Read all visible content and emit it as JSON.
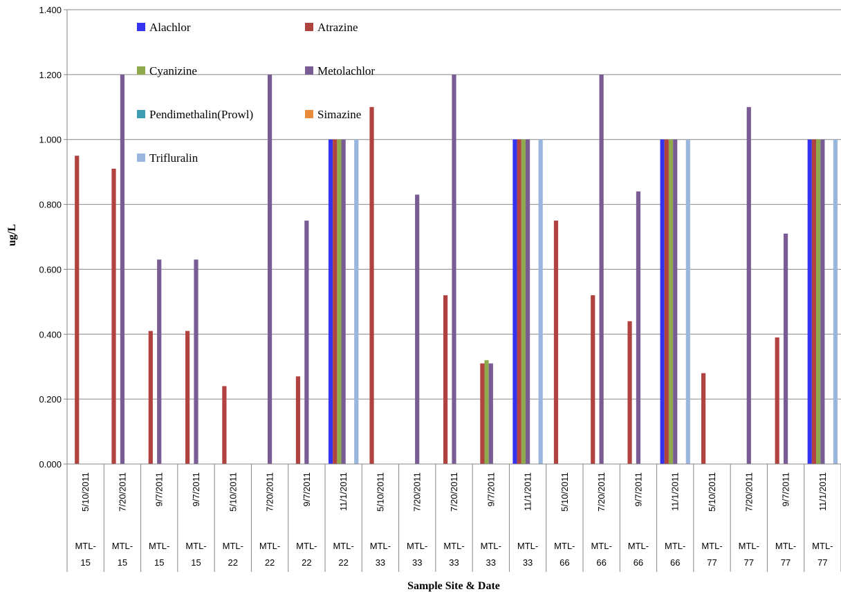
{
  "chart_data": {
    "type": "bar",
    "xlabel": "Sample Site & Date",
    "ylabel": "ug/L",
    "ylim": [
      0,
      1.4
    ],
    "yticks": [
      "0.000",
      "0.200",
      "0.400",
      "0.600",
      "0.800",
      "1.000",
      "1.200",
      "1.400"
    ],
    "grid": "horizontal",
    "legend_position": "top-left",
    "categories": [
      {
        "date": "5/10/2011",
        "site": [
          "MTL-",
          "15"
        ]
      },
      {
        "date": "7/20/2011",
        "site": [
          "MTL-",
          "15"
        ]
      },
      {
        "date": "9/7/2011",
        "site": [
          "MTL-",
          "15"
        ]
      },
      {
        "date": "9/7/2011",
        "site": [
          "MTL-",
          "15"
        ]
      },
      {
        "date": "5/10/2011",
        "site": [
          "MTL-",
          "22"
        ]
      },
      {
        "date": "7/20/2011",
        "site": [
          "MTL-",
          "22"
        ]
      },
      {
        "date": "9/7/2011",
        "site": [
          "MTL-",
          "22"
        ]
      },
      {
        "date": "11/1/2011",
        "site": [
          "MTL-",
          "22"
        ]
      },
      {
        "date": "5/10/2011",
        "site": [
          "MTL-",
          "33"
        ]
      },
      {
        "date": "7/20/2011",
        "site": [
          "MTL-",
          "33"
        ]
      },
      {
        "date": "7/20/2011",
        "site": [
          "MTL-",
          "33"
        ]
      },
      {
        "date": "9/7/2011",
        "site": [
          "MTL-",
          "33"
        ]
      },
      {
        "date": "11/1/2011",
        "site": [
          "MTL-",
          "33"
        ]
      },
      {
        "date": "5/10/2011",
        "site": [
          "MTL-",
          "66"
        ]
      },
      {
        "date": "7/20/2011",
        "site": [
          "MTL-",
          "66"
        ]
      },
      {
        "date": "9/7/2011",
        "site": [
          "MTL-",
          "66"
        ]
      },
      {
        "date": "11/1/2011",
        "site": [
          "MTL-",
          "66"
        ]
      },
      {
        "date": "5/10/2011",
        "site": [
          "MTL-",
          "77"
        ]
      },
      {
        "date": "7/20/2011",
        "site": [
          "MTL-",
          "77"
        ]
      },
      {
        "date": "9/7/2011",
        "site": [
          "MTL-",
          "77"
        ]
      },
      {
        "date": "11/1/2011",
        "site": [
          "MTL-",
          "77"
        ]
      }
    ],
    "series": [
      {
        "name": "Alachlor",
        "color": "#3434f0",
        "values": [
          0,
          0,
          0,
          0,
          0,
          0,
          0,
          1.0,
          0,
          0,
          0,
          0,
          1.0,
          0,
          0,
          0,
          1.0,
          0,
          0,
          0,
          1.0
        ]
      },
      {
        "name": "Atrazine",
        "color": "#b0433f",
        "values": [
          0.95,
          0.91,
          0.41,
          0.41,
          0.24,
          0,
          0.27,
          1.0,
          1.1,
          0,
          0.52,
          0.31,
          1.0,
          0.75,
          0.52,
          0.44,
          1.0,
          0.28,
          0,
          0.39,
          1.0
        ]
      },
      {
        "name": "Cyanizine",
        "color": "#8eaa4c",
        "values": [
          0,
          0,
          0,
          0,
          0,
          0,
          0,
          1.0,
          0,
          0,
          0,
          0.32,
          1.0,
          0,
          0,
          0,
          1.0,
          0,
          0,
          0,
          1.0
        ]
      },
      {
        "name": "Metolachlor",
        "color": "#7a5c94",
        "values": [
          0,
          1.2,
          0.63,
          0.63,
          0,
          1.2,
          0.75,
          1.0,
          0,
          0.83,
          1.2,
          0.31,
          1.0,
          0,
          1.2,
          0.84,
          1.0,
          0,
          1.1,
          0.71,
          1.0
        ]
      },
      {
        "name": "Pendimethalin(Prowl)",
        "color": "#3e9db3",
        "values": [
          0,
          0,
          0,
          0,
          0,
          0,
          0,
          0,
          0,
          0,
          0,
          0,
          0,
          0,
          0,
          0,
          0,
          0,
          0,
          0,
          0
        ]
      },
      {
        "name": "Simazine",
        "color": "#e88a3a",
        "values": [
          0,
          0,
          0,
          0,
          0,
          0,
          0,
          0,
          0,
          0,
          0,
          0,
          0,
          0,
          0,
          0,
          0,
          0,
          0,
          0,
          0
        ]
      },
      {
        "name": "Trifluralin",
        "color": "#9bb6dc",
        "values": [
          0,
          0,
          0,
          0,
          0,
          0,
          0,
          1.0,
          0,
          0,
          0,
          0,
          1.0,
          0,
          0,
          0,
          1.0,
          0,
          0,
          0,
          1.0
        ]
      }
    ]
  }
}
